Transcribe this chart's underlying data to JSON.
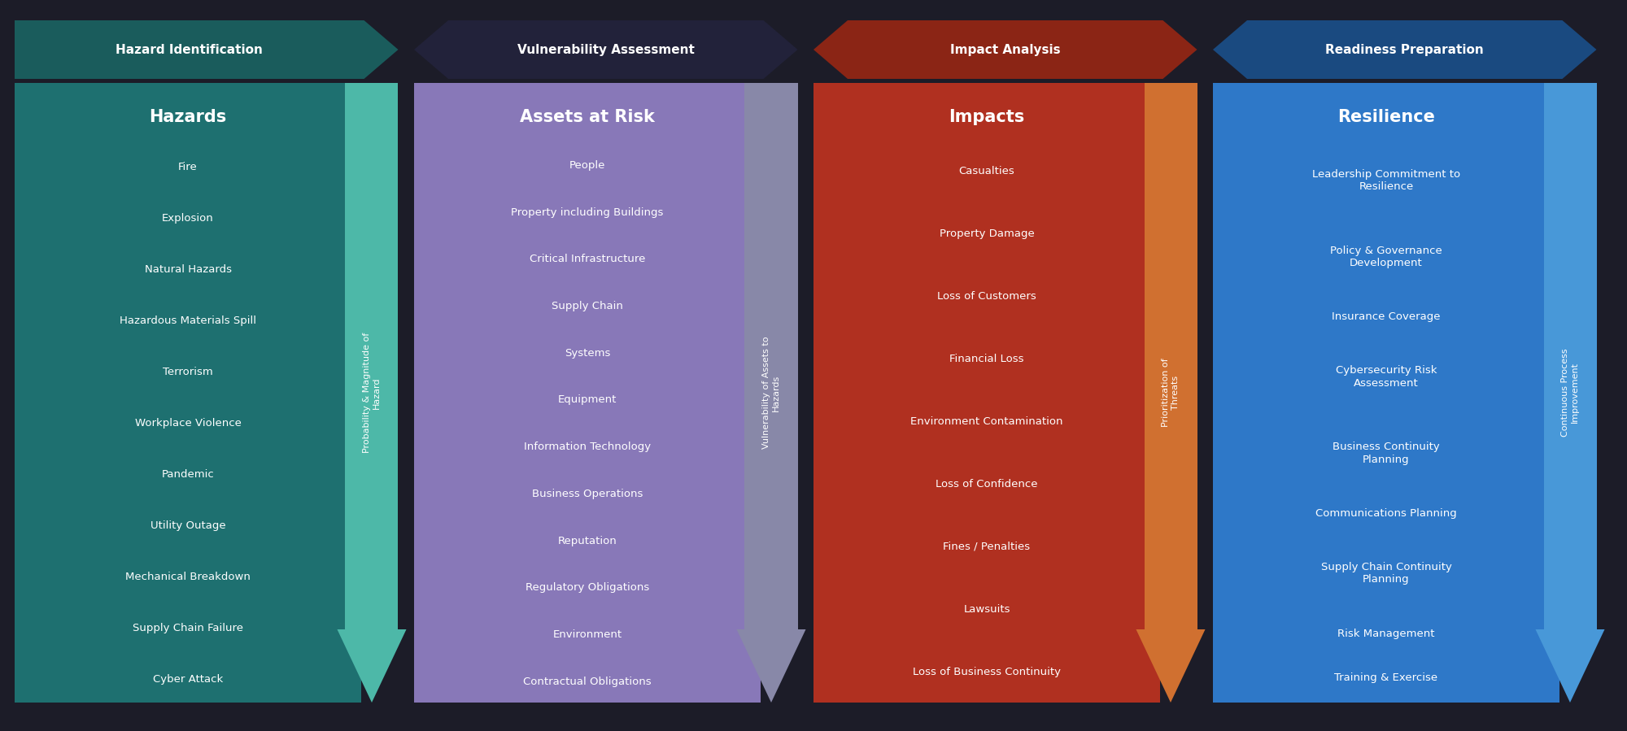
{
  "background_color": "#1c1c28",
  "boxes": [
    {
      "title": "Hazards",
      "header": "Hazard Identification",
      "box_color": "#1e7070",
      "header_color": "#1a5c5c",
      "text_color": "#ffffff",
      "items": [
        "Fire",
        "Explosion",
        "Natural Hazards",
        "Hazardous Materials Spill",
        "Terrorism",
        "Workplace Violence",
        "Pandemic",
        "Utility Outage",
        "Mechanical Breakdown",
        "Supply Chain Failure",
        "Cyber Attack"
      ]
    },
    {
      "title": "Assets at Risk",
      "header": "Vulnerability Assessment",
      "box_color": "#8878b8",
      "header_color": "#22223a",
      "text_color": "#ffffff",
      "items": [
        "People",
        "Property including Buildings",
        "Critical Infrastructure",
        "Supply Chain",
        "Systems",
        "Equipment",
        "Information Technology",
        "Business Operations",
        "Reputation",
        "Regulatory Obligations",
        "Environment",
        "Contractual Obligations"
      ]
    },
    {
      "title": "Impacts",
      "header": "Impact Analysis",
      "box_color": "#b03020",
      "header_color": "#8b2515",
      "text_color": "#ffffff",
      "items": [
        "Casualties",
        "Property Damage",
        "Loss of Customers",
        "Financial Loss",
        "Environment Contamination",
        "Loss of Confidence",
        "Fines / Penalties",
        "Lawsuits",
        "Loss of Business Continuity"
      ]
    },
    {
      "title": "Resilience",
      "header": "Readiness Preparation",
      "box_color": "#2e78c8",
      "header_color": "#1a4a80",
      "text_color": "#ffffff",
      "items": [
        "Leadership Commitment to\nResilience",
        "Policy & Governance\nDevelopment",
        "Insurance Coverage",
        "Cybersecurity Risk\nAssessment",
        "Business Continuity\nPlanning",
        "Communications Planning",
        "Supply Chain Continuity\nPlanning",
        "Risk Management",
        "Training & Exercise"
      ]
    }
  ],
  "side_arrows": [
    {
      "label": "Probability & Magnitude of\nHazard",
      "color": "#4db8a8"
    },
    {
      "label": "Vulnerability of Assets to\nHazards",
      "color": "#8888a8"
    },
    {
      "label": "Prioritization of\nThreats",
      "color": "#d07030"
    },
    {
      "label": "Continuous Process\nImprovement",
      "color": "#4898d8"
    }
  ],
  "fig_width": 20.0,
  "fig_height": 8.99,
  "dpi": 100,
  "title_fontsize": 15,
  "item_fontsize": 9.5,
  "header_fontsize": 11
}
